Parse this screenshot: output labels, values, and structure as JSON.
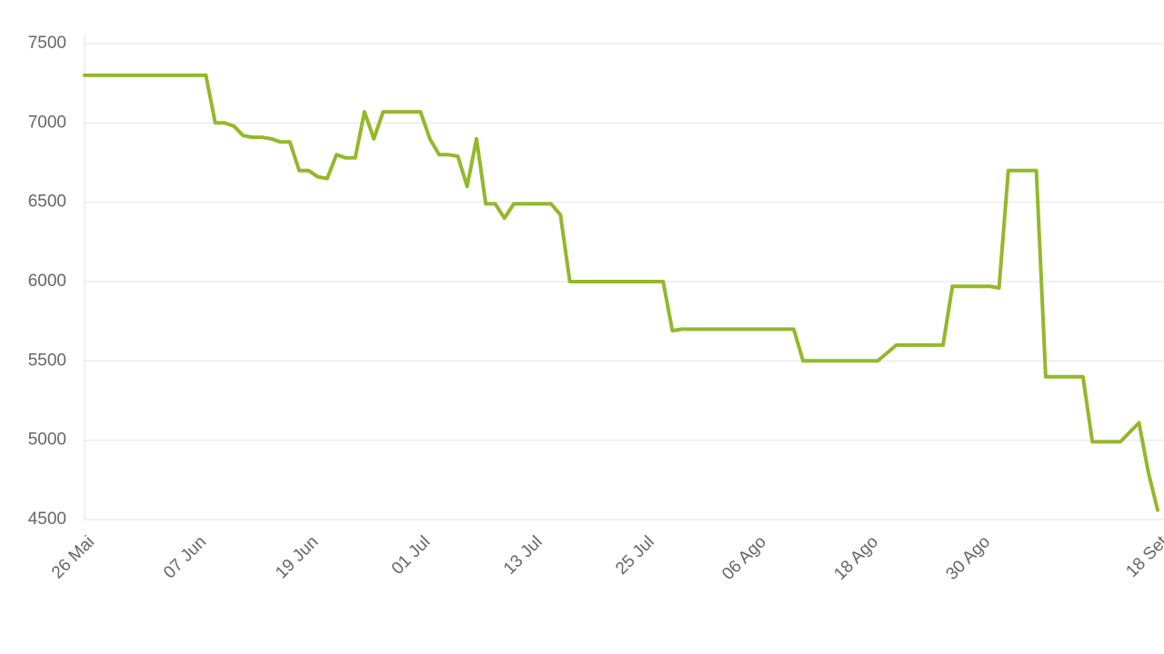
{
  "chart_data": {
    "type": "line",
    "categories": [
      "26 Mai",
      null,
      null,
      null,
      null,
      null,
      null,
      null,
      null,
      null,
      null,
      null,
      "07 Jun",
      null,
      null,
      null,
      null,
      null,
      null,
      null,
      null,
      null,
      null,
      null,
      "19 Jun",
      null,
      null,
      null,
      null,
      null,
      null,
      null,
      null,
      null,
      null,
      null,
      "01 Jul",
      null,
      null,
      null,
      null,
      null,
      null,
      null,
      null,
      null,
      null,
      null,
      "13 Jul",
      null,
      null,
      null,
      null,
      null,
      null,
      null,
      null,
      null,
      null,
      null,
      "25 Jul",
      null,
      null,
      null,
      null,
      null,
      null,
      null,
      null,
      null,
      null,
      null,
      "06 Ago",
      null,
      null,
      null,
      null,
      null,
      null,
      null,
      null,
      null,
      null,
      null,
      "18 Ago",
      null,
      null,
      null,
      null,
      null,
      null,
      null,
      null,
      null,
      null,
      null,
      "30 Ago",
      null,
      null,
      null,
      null,
      null,
      null,
      null,
      null,
      null,
      null,
      null,
      null,
      null,
      null,
      null,
      null,
      null,
      null,
      "18 Set"
    ],
    "series": [
      {
        "color": "#94b82a",
        "values": [
          7300,
          7300,
          7300,
          7300,
          7300,
          7300,
          7300,
          7300,
          7300,
          7300,
          7300,
          7300,
          7300,
          7300,
          7000,
          7000,
          6980,
          6920,
          6910,
          6910,
          6900,
          6880,
          6880,
          6700,
          6700,
          6660,
          6650,
          6800,
          6780,
          6780,
          7070,
          6900,
          7070,
          7070,
          7070,
          7070,
          7070,
          6900,
          6800,
          6800,
          6790,
          6600,
          6900,
          6490,
          6490,
          6400,
          6490,
          6490,
          6490,
          6490,
          6490,
          6420,
          6000,
          6000,
          6000,
          6000,
          6000,
          6000,
          6000,
          6000,
          6000,
          6000,
          6000,
          5690,
          5700,
          5700,
          5700,
          5700,
          5700,
          5700,
          5700,
          5700,
          5700,
          5700,
          5700,
          5700,
          5700,
          5500,
          5500,
          5500,
          5500,
          5500,
          5500,
          5500,
          5500,
          5500,
          5550,
          5600,
          5600,
          5600,
          5600,
          5600,
          5600,
          5970,
          5970,
          5970,
          5970,
          5970,
          5960,
          6700,
          6700,
          6700,
          6700,
          5400,
          5400,
          5400,
          5400,
          5400,
          4990,
          4990,
          4990,
          4990,
          5050,
          5110,
          4800,
          4560
        ]
      }
    ],
    "ylim": [
      4500,
      7500
    ],
    "yticks": [
      4500,
      5000,
      5500,
      6000,
      6500,
      7000,
      7500
    ],
    "grid": true
  }
}
